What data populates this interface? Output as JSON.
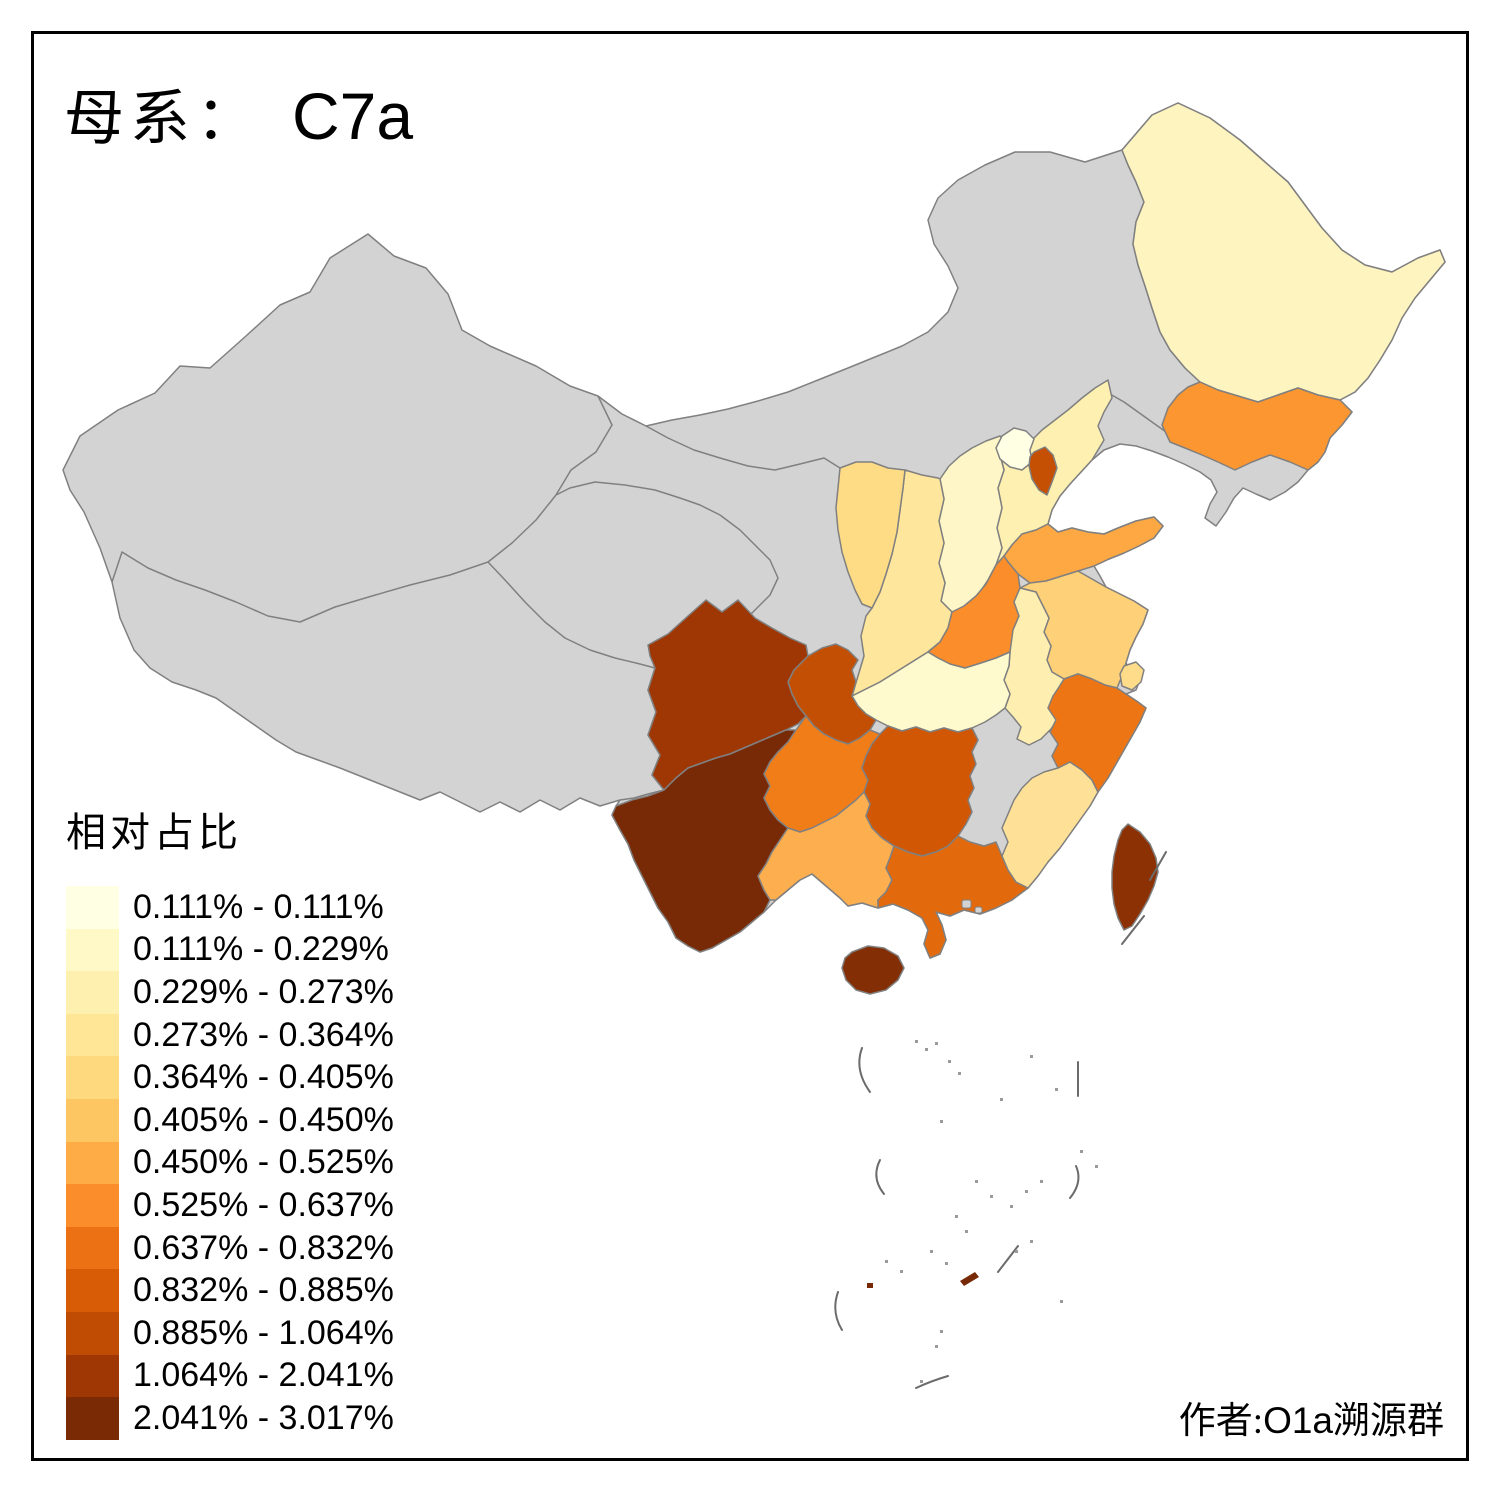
{
  "title": {
    "prefix": "母系：",
    "code": "C7a"
  },
  "legend": {
    "title": "相对占比",
    "items": [
      {
        "label": "0.111% - 0.111%",
        "color": "#FFFFE3"
      },
      {
        "label": "0.111% - 0.229%",
        "color": "#FFF9C7"
      },
      {
        "label": "0.229% - 0.273%",
        "color": "#FEF0AE"
      },
      {
        "label": "0.273% - 0.364%",
        "color": "#FEE696"
      },
      {
        "label": "0.364% - 0.405%",
        "color": "#FED97E"
      },
      {
        "label": "0.405% - 0.450%",
        "color": "#FEC563"
      },
      {
        "label": "0.450% - 0.525%",
        "color": "#FEAC46"
      },
      {
        "label": "0.525% - 0.637%",
        "color": "#FB8D2B"
      },
      {
        "label": "0.637% - 0.832%",
        "color": "#EC7014"
      },
      {
        "label": "0.832% - 0.885%",
        "color": "#D85C06"
      },
      {
        "label": "0.885% - 1.064%",
        "color": "#C04B02"
      },
      {
        "label": "1.064% - 2.041%",
        "color": "#9E3703"
      },
      {
        "label": "2.041% - 3.017%",
        "color": "#7A2B05"
      }
    ]
  },
  "author": {
    "prefix": "作者:",
    "group_latin": "O1a",
    "group_cjk": "溯源群"
  },
  "map": {
    "na_color": "#D3D3D3",
    "border_color": "#808080",
    "sea_color": "#FFFFFF",
    "frame_color": "#000000",
    "na_provinces": [
      "xinjiang",
      "tibet",
      "qinghai",
      "gansu",
      "inner-mongolia",
      "liaoning",
      "jiangxi",
      "hongkong",
      "macau"
    ],
    "provinces": [
      {
        "id": "heilongjiang",
        "color": "#FEF4C0"
      },
      {
        "id": "jilin",
        "color": "#FB9630"
      },
      {
        "id": "beijing",
        "color": "#FFFFE3"
      },
      {
        "id": "tianjin",
        "color": "#C54F02"
      },
      {
        "id": "hebei",
        "color": "#FEF0B0"
      },
      {
        "id": "shanxi",
        "color": "#FEF6C6"
      },
      {
        "id": "shandong",
        "color": "#FEA843"
      },
      {
        "id": "henan",
        "color": "#FB8D2B"
      },
      {
        "id": "shaanxi",
        "color": "#FEE69C"
      },
      {
        "id": "ningxia",
        "color": "#FEDC86"
      },
      {
        "id": "jiangsu",
        "color": "#FED077"
      },
      {
        "id": "anhui",
        "color": "#FEEFB0"
      },
      {
        "id": "shanghai",
        "color": "#FEDC8A"
      },
      {
        "id": "hubei",
        "color": "#FEFACD"
      },
      {
        "id": "zhejiang",
        "color": "#ED7514"
      },
      {
        "id": "fujian",
        "color": "#FEE197"
      },
      {
        "id": "hunan",
        "color": "#D15705"
      },
      {
        "id": "chongqing",
        "color": "#C24F03"
      },
      {
        "id": "sichuan",
        "color": "#9E3703"
      },
      {
        "id": "yunnan",
        "color": "#772A05"
      },
      {
        "id": "guizhou",
        "color": "#F17D19"
      },
      {
        "id": "guangxi",
        "color": "#FDAE4F"
      },
      {
        "id": "guangdong",
        "color": "#E26A0C"
      },
      {
        "id": "hainan",
        "color": "#832E05"
      },
      {
        "id": "taiwan",
        "color": "#8C3104"
      }
    ]
  }
}
